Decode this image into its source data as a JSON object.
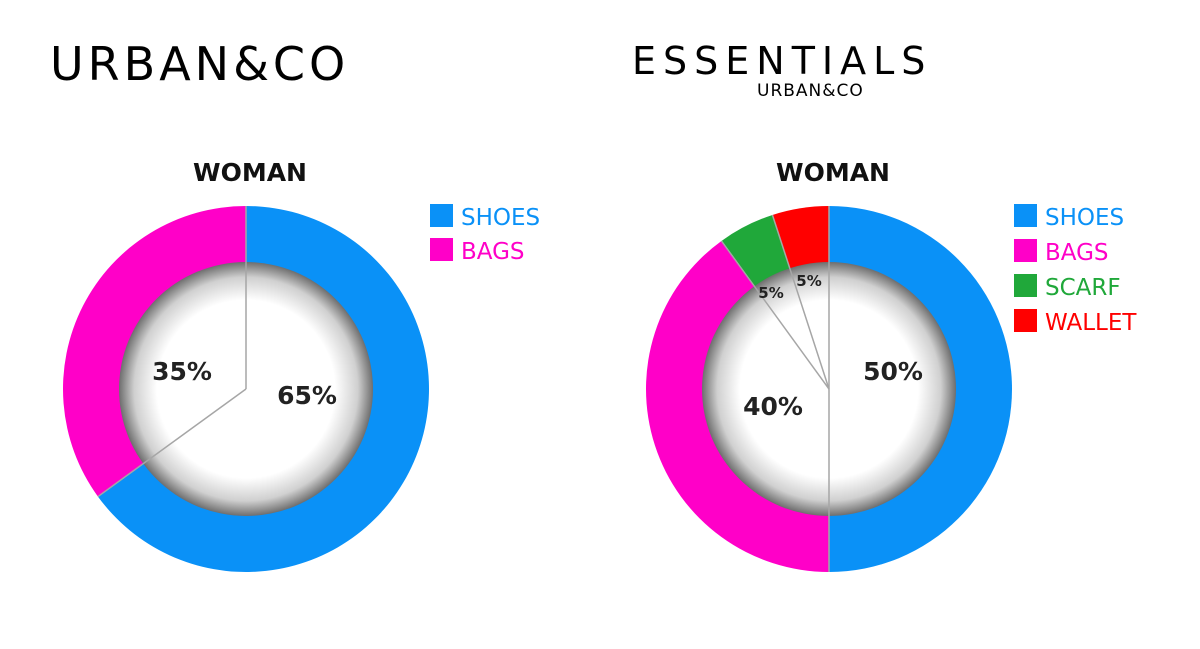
{
  "brands": {
    "left": {
      "logo": "URBAN&CO"
    },
    "right": {
      "logo": "ESSENTIALS",
      "sublogo": "URBAN&CO"
    }
  },
  "colors": {
    "shoes": "#0a91f7",
    "bags": "#ff00c8",
    "scarf": "#20a83a",
    "wallet": "#ff0000",
    "divider": "#a6a6a6",
    "label": "#222222"
  },
  "chart_data": [
    {
      "type": "pie",
      "title": "WOMAN",
      "categories": [
        "SHOES",
        "BAGS"
      ],
      "values": [
        65,
        35
      ],
      "labels": [
        "65%",
        "35%"
      ],
      "legend": "right",
      "style": "donut"
    },
    {
      "type": "pie",
      "title": "WOMAN",
      "categories": [
        "SHOES",
        "BAGS",
        "SCARF",
        "WALLET"
      ],
      "values": [
        50,
        40,
        5,
        5
      ],
      "labels": [
        "50%",
        "40%",
        "5%",
        "5%"
      ],
      "legend": "right",
      "style": "donut"
    }
  ]
}
